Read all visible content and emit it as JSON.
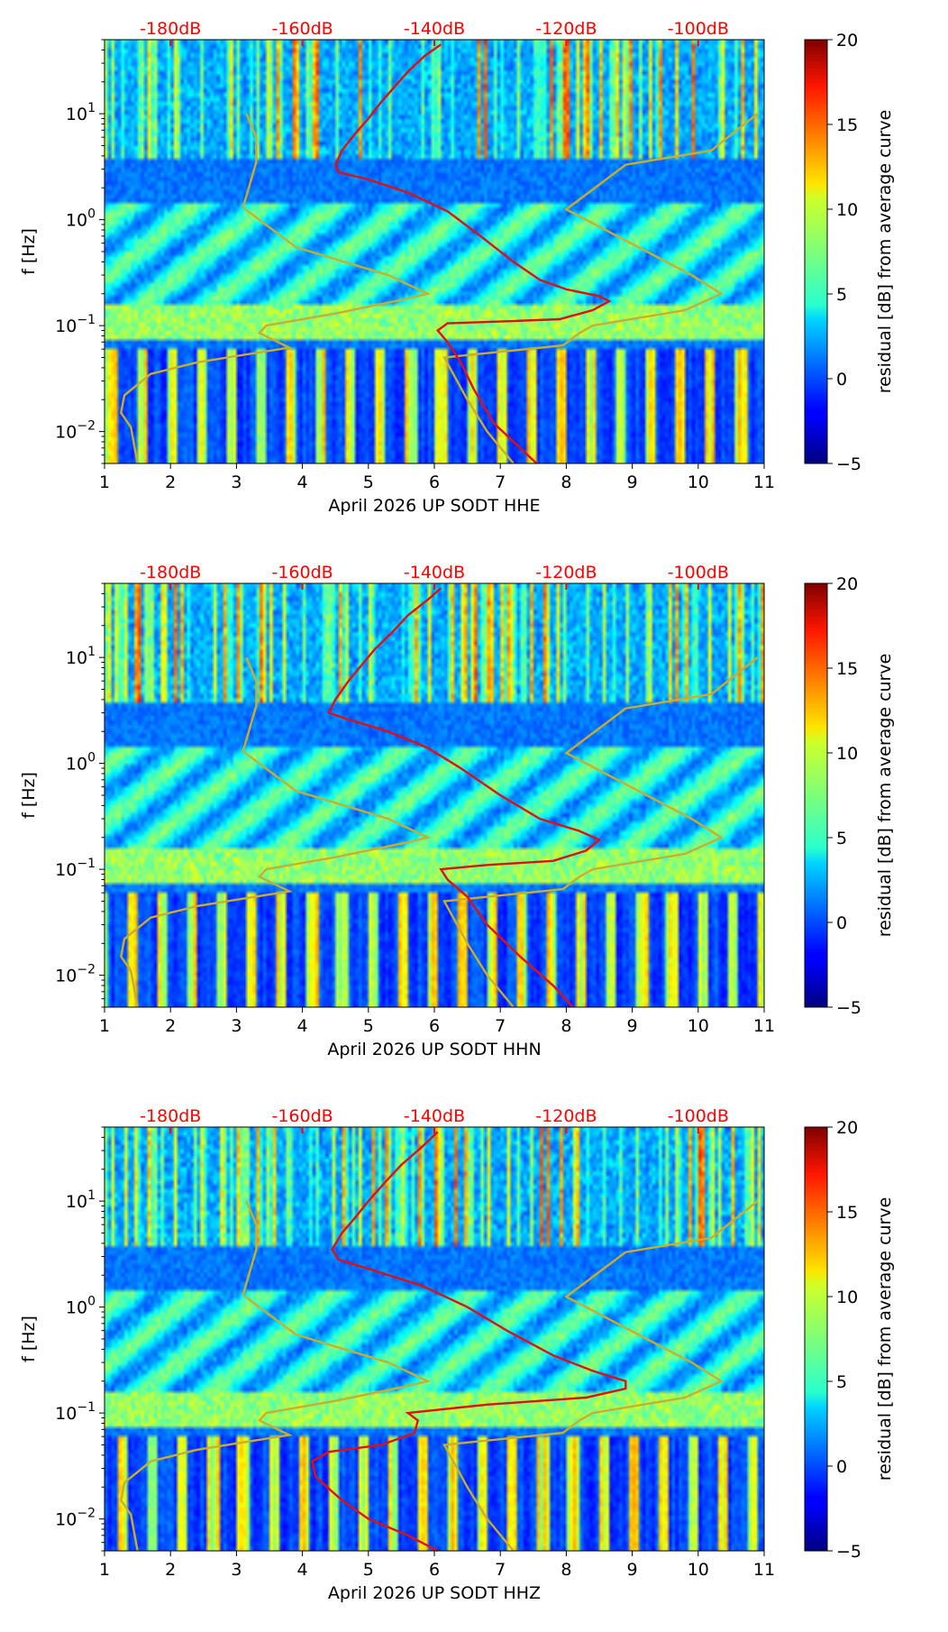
{
  "figure": {
    "colors": {
      "db_axis": "#ff0000",
      "psd_curve": "#e01010",
      "noise_model": "#c8ad2f"
    }
  },
  "chart_data": [
    {
      "type": "heatmap",
      "xlabel": "April 2026 UP SODT  HHE",
      "ylabel": "f [Hz]",
      "xlim": [
        1,
        11
      ],
      "ylim": [
        0.005,
        50
      ],
      "yscale": "log",
      "x_ticks": [
        "1",
        "2",
        "3",
        "4",
        "5",
        "6",
        "7",
        "8",
        "9",
        "10",
        "11"
      ],
      "y_ticks": [
        {
          "base": "10",
          "exp": "−2",
          "value": 0.01
        },
        {
          "base": "10",
          "exp": "−1",
          "value": 0.1
        },
        {
          "base": "10",
          "exp": "0",
          "value": 1
        },
        {
          "base": "10",
          "exp": "1",
          "value": 10
        }
      ],
      "db_axis": {
        "labels": [
          "-180dB",
          "-160dB",
          "-140dB",
          "-120dB",
          "-100dB"
        ],
        "positions": [
          2,
          4,
          6,
          8,
          10
        ]
      },
      "colorbar": {
        "label": "residual [dB] from average curve",
        "range": [
          -5,
          20
        ],
        "ticks": [
          "−5",
          "0",
          "5",
          "10",
          "15",
          "20"
        ],
        "colormap": "jet"
      },
      "psd_curve": [
        [
          7.55,
          0.005
        ],
        [
          7.3,
          0.007
        ],
        [
          6.9,
          0.012
        ],
        [
          6.6,
          0.025
        ],
        [
          6.4,
          0.045
        ],
        [
          6.2,
          0.07
        ],
        [
          6.05,
          0.09
        ],
        [
          6.2,
          0.105
        ],
        [
          7.1,
          0.11
        ],
        [
          7.9,
          0.115
        ],
        [
          8.4,
          0.14
        ],
        [
          8.65,
          0.17
        ],
        [
          8.5,
          0.19
        ],
        [
          8.0,
          0.22
        ],
        [
          7.6,
          0.27
        ],
        [
          7.2,
          0.4
        ],
        [
          6.7,
          0.7
        ],
        [
          6.2,
          1.2
        ],
        [
          5.6,
          1.8
        ],
        [
          5.0,
          2.4
        ],
        [
          4.55,
          2.8
        ],
        [
          4.5,
          3.3
        ],
        [
          4.6,
          4.5
        ],
        [
          4.8,
          6.5
        ],
        [
          5.0,
          9.0
        ],
        [
          5.2,
          13.0
        ],
        [
          5.4,
          18.0
        ],
        [
          5.6,
          25.0
        ],
        [
          5.85,
          35.0
        ],
        [
          6.1,
          45.0
        ]
      ],
      "noise_models": [
        [
          [
            1.5,
            0.005
          ],
          [
            1.4,
            0.011
          ],
          [
            1.25,
            0.015
          ],
          [
            1.3,
            0.022
          ],
          [
            1.7,
            0.035
          ],
          [
            2.4,
            0.045
          ],
          [
            3.8,
            0.062
          ],
          [
            3.35,
            0.085
          ],
          [
            3.45,
            0.1
          ],
          [
            4.5,
            0.13
          ],
          [
            5.6,
            0.18
          ],
          [
            5.9,
            0.2
          ],
          [
            5.3,
            0.3
          ],
          [
            3.9,
            0.55
          ],
          [
            3.1,
            1.3
          ],
          [
            3.3,
            3.5
          ],
          [
            3.3,
            6.0
          ],
          [
            3.15,
            10.0
          ]
        ],
        [
          [
            7.2,
            0.005
          ],
          [
            6.8,
            0.01
          ],
          [
            6.5,
            0.02
          ],
          [
            6.15,
            0.05
          ],
          [
            7.95,
            0.065
          ],
          [
            8.2,
            0.085
          ],
          [
            8.4,
            0.1
          ],
          [
            9.8,
            0.14
          ],
          [
            10.35,
            0.2
          ],
          [
            9.9,
            0.3
          ],
          [
            8.0,
            1.25
          ],
          [
            8.9,
            3.3
          ],
          [
            10.2,
            4.5
          ],
          [
            10.9,
            10.0
          ]
        ]
      ]
    },
    {
      "type": "heatmap",
      "xlabel": "April 2026 UP SODT  HHN",
      "ylabel": "f [Hz]",
      "xlim": [
        1,
        11
      ],
      "ylim": [
        0.005,
        50
      ],
      "yscale": "log",
      "x_ticks": [
        "1",
        "2",
        "3",
        "4",
        "5",
        "6",
        "7",
        "8",
        "9",
        "10",
        "11"
      ],
      "y_ticks": [
        {
          "base": "10",
          "exp": "−2",
          "value": 0.01
        },
        {
          "base": "10",
          "exp": "−1",
          "value": 0.1
        },
        {
          "base": "10",
          "exp": "0",
          "value": 1
        },
        {
          "base": "10",
          "exp": "1",
          "value": 10
        }
      ],
      "db_axis": {
        "labels": [
          "-180dB",
          "-160dB",
          "-140dB",
          "-120dB",
          "-100dB"
        ],
        "positions": [
          2,
          4,
          6,
          8,
          10
        ]
      },
      "colorbar": {
        "label": "residual [dB] from average curve",
        "range": [
          -5,
          20
        ],
        "ticks": [
          "−5",
          "0",
          "5",
          "10",
          "15",
          "20"
        ],
        "colormap": "jet"
      },
      "psd_curve": [
        [
          8.1,
          0.005
        ],
        [
          7.8,
          0.008
        ],
        [
          7.3,
          0.015
        ],
        [
          6.8,
          0.03
        ],
        [
          6.5,
          0.055
        ],
        [
          6.2,
          0.08
        ],
        [
          6.1,
          0.1
        ],
        [
          6.8,
          0.11
        ],
        [
          7.8,
          0.12
        ],
        [
          8.3,
          0.15
        ],
        [
          8.5,
          0.19
        ],
        [
          8.2,
          0.23
        ],
        [
          7.6,
          0.3
        ],
        [
          7.0,
          0.5
        ],
        [
          6.4,
          0.9
        ],
        [
          5.9,
          1.4
        ],
        [
          5.3,
          2.0
        ],
        [
          4.7,
          2.6
        ],
        [
          4.4,
          3.0
        ],
        [
          4.5,
          4.0
        ],
        [
          4.7,
          6.0
        ],
        [
          4.9,
          8.5
        ],
        [
          5.1,
          12.0
        ],
        [
          5.35,
          17.0
        ],
        [
          5.6,
          25.0
        ],
        [
          5.9,
          35.0
        ],
        [
          6.1,
          45.0
        ]
      ],
      "noise_models": [
        [
          [
            1.5,
            0.005
          ],
          [
            1.4,
            0.011
          ],
          [
            1.25,
            0.015
          ],
          [
            1.3,
            0.022
          ],
          [
            1.7,
            0.035
          ],
          [
            2.4,
            0.045
          ],
          [
            3.8,
            0.062
          ],
          [
            3.35,
            0.085
          ],
          [
            3.45,
            0.1
          ],
          [
            4.5,
            0.13
          ],
          [
            5.6,
            0.18
          ],
          [
            5.9,
            0.2
          ],
          [
            5.3,
            0.3
          ],
          [
            3.9,
            0.55
          ],
          [
            3.1,
            1.3
          ],
          [
            3.3,
            3.5
          ],
          [
            3.3,
            6.0
          ],
          [
            3.15,
            10.0
          ]
        ],
        [
          [
            7.2,
            0.005
          ],
          [
            6.8,
            0.01
          ],
          [
            6.5,
            0.02
          ],
          [
            6.15,
            0.05
          ],
          [
            7.95,
            0.065
          ],
          [
            8.2,
            0.085
          ],
          [
            8.4,
            0.1
          ],
          [
            9.8,
            0.14
          ],
          [
            10.35,
            0.2
          ],
          [
            9.9,
            0.3
          ],
          [
            8.0,
            1.25
          ],
          [
            8.9,
            3.3
          ],
          [
            10.2,
            4.5
          ],
          [
            10.9,
            10.0
          ]
        ]
      ]
    },
    {
      "type": "heatmap",
      "xlabel": "April 2026 UP SODT  HHZ",
      "ylabel": "f [Hz]",
      "xlim": [
        1,
        11
      ],
      "ylim": [
        0.005,
        50
      ],
      "yscale": "log",
      "x_ticks": [
        "1",
        "2",
        "3",
        "4",
        "5",
        "6",
        "7",
        "8",
        "9",
        "10",
        "11"
      ],
      "y_ticks": [
        {
          "base": "10",
          "exp": "−2",
          "value": 0.01
        },
        {
          "base": "10",
          "exp": "−1",
          "value": 0.1
        },
        {
          "base": "10",
          "exp": "0",
          "value": 1
        },
        {
          "base": "10",
          "exp": "1",
          "value": 10
        }
      ],
      "db_axis": {
        "labels": [
          "-180dB",
          "-160dB",
          "-140dB",
          "-120dB",
          "-100dB"
        ],
        "positions": [
          2,
          4,
          6,
          8,
          10
        ]
      },
      "colorbar": {
        "label": "residual [dB] from average curve",
        "range": [
          -5,
          20
        ],
        "ticks": [
          "−5",
          "0",
          "5",
          "10",
          "15",
          "20"
        ],
        "colormap": "jet"
      },
      "psd_curve": [
        [
          6.05,
          0.005
        ],
        [
          5.6,
          0.007
        ],
        [
          5.0,
          0.01
        ],
        [
          4.6,
          0.015
        ],
        [
          4.2,
          0.025
        ],
        [
          4.15,
          0.035
        ],
        [
          4.4,
          0.043
        ],
        [
          5.2,
          0.05
        ],
        [
          5.7,
          0.065
        ],
        [
          5.75,
          0.085
        ],
        [
          5.6,
          0.1
        ],
        [
          6.8,
          0.12
        ],
        [
          8.3,
          0.14
        ],
        [
          8.9,
          0.17
        ],
        [
          8.9,
          0.2
        ],
        [
          8.4,
          0.25
        ],
        [
          7.8,
          0.35
        ],
        [
          7.1,
          0.6
        ],
        [
          6.5,
          1.0
        ],
        [
          5.8,
          1.6
        ],
        [
          5.0,
          2.3
        ],
        [
          4.55,
          2.8
        ],
        [
          4.45,
          3.5
        ],
        [
          4.6,
          5.0
        ],
        [
          4.8,
          7.0
        ],
        [
          5.0,
          10.0
        ],
        [
          5.25,
          15.0
        ],
        [
          5.5,
          22.0
        ],
        [
          5.8,
          32.0
        ],
        [
          6.05,
          45.0
        ]
      ],
      "noise_models": [
        [
          [
            1.5,
            0.005
          ],
          [
            1.4,
            0.011
          ],
          [
            1.25,
            0.015
          ],
          [
            1.3,
            0.022
          ],
          [
            1.7,
            0.035
          ],
          [
            2.4,
            0.045
          ],
          [
            3.8,
            0.062
          ],
          [
            3.35,
            0.085
          ],
          [
            3.45,
            0.1
          ],
          [
            4.5,
            0.13
          ],
          [
            5.6,
            0.18
          ],
          [
            5.9,
            0.2
          ],
          [
            5.3,
            0.3
          ],
          [
            3.9,
            0.55
          ],
          [
            3.1,
            1.3
          ],
          [
            3.3,
            3.5
          ],
          [
            3.3,
            6.0
          ],
          [
            3.15,
            10.0
          ]
        ],
        [
          [
            7.2,
            0.005
          ],
          [
            6.8,
            0.01
          ],
          [
            6.5,
            0.02
          ],
          [
            6.15,
            0.05
          ],
          [
            7.95,
            0.065
          ],
          [
            8.2,
            0.085
          ],
          [
            8.4,
            0.1
          ],
          [
            9.8,
            0.14
          ],
          [
            10.35,
            0.2
          ],
          [
            9.9,
            0.3
          ],
          [
            8.0,
            1.25
          ],
          [
            8.9,
            3.3
          ],
          [
            10.2,
            4.5
          ],
          [
            10.9,
            10.0
          ]
        ]
      ]
    }
  ]
}
